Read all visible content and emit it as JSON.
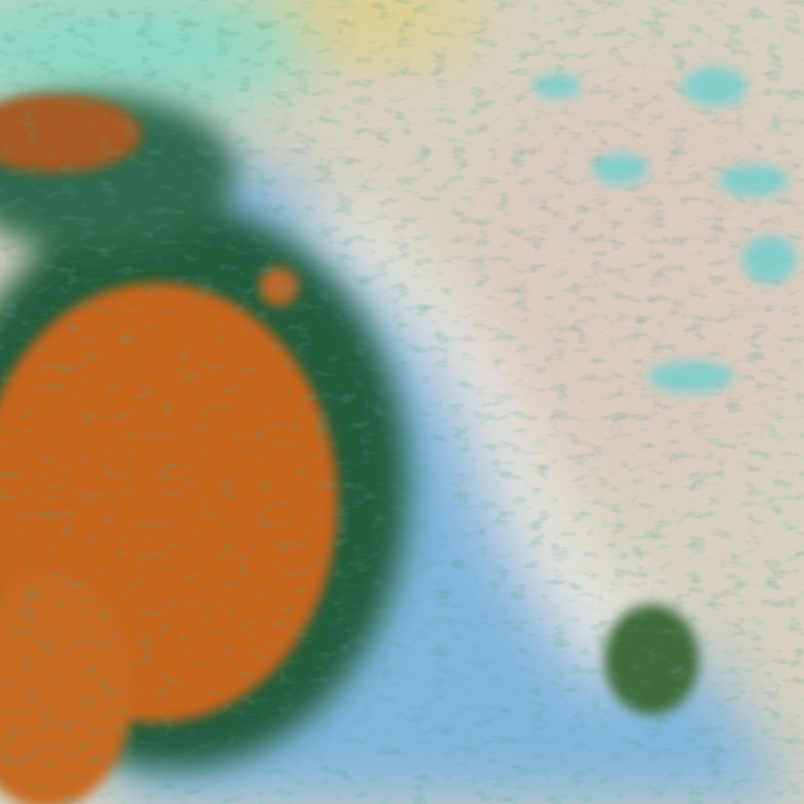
{
  "image": {
    "kind": "false-color satellite imagery",
    "colors": {
      "pale_cloud": "#d9d2bf",
      "land_orange": "#c8651c",
      "water_blue": "#7fb8dc",
      "cyan_ice": "#6fd6cf",
      "dark_green": "#1f5a3a",
      "yellow_land": "#e2d08a"
    }
  }
}
